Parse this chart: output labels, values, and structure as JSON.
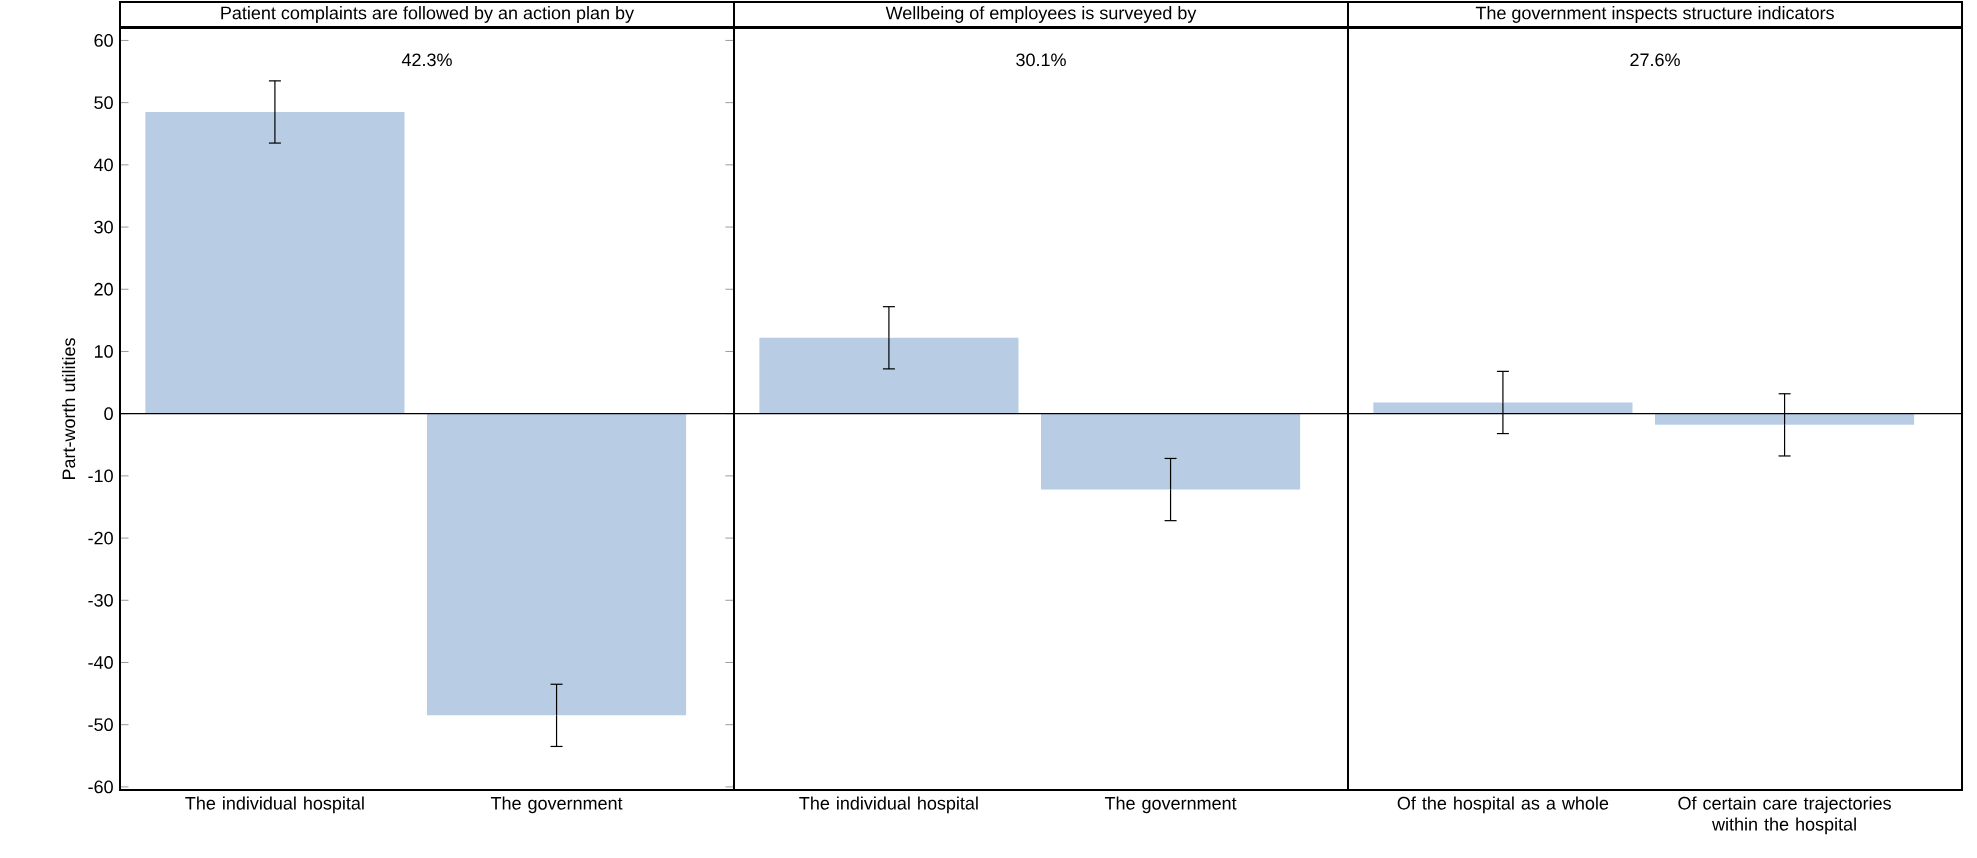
{
  "chart_data": [
    {
      "type": "bar",
      "title": "Patient complaints are followed by an action plan by",
      "categories": [
        "The individual hospital",
        "The government"
      ],
      "values": [
        48.5,
        -48.5
      ],
      "errors": [
        5,
        5
      ],
      "color": "#b8cce4",
      "ylim": [
        -60.5,
        62
      ],
      "yticks": [
        -60,
        -50,
        -40,
        -30,
        -20,
        -10,
        0,
        10,
        20,
        30,
        40,
        50,
        60
      ],
      "ylabel": "Part-worth utilities",
      "annotations": [
        "42.3%"
      ]
    },
    {
      "type": "bar",
      "title": "Wellbeing of employees is surveyed by",
      "categories": [
        "The individual hospital",
        "The government"
      ],
      "values": [
        12.2,
        -12.2
      ],
      "errors": [
        5,
        5
      ],
      "color": "#b8cce4",
      "ylim": [
        -60.5,
        62
      ],
      "yticks": [
        -60,
        -50,
        -40,
        -30,
        -20,
        -10,
        0,
        10,
        20,
        30,
        40,
        50,
        60
      ],
      "tick_labels": "x",
      "annotations": [
        "30.1%"
      ]
    },
    {
      "type": "bar",
      "title": "The government inspects structure indicators",
      "categories": [
        "Of the hospital as a whole",
        "Of certain care trajectories within the hospital"
      ],
      "values": [
        1.8,
        -1.8
      ],
      "errors": [
        5,
        5
      ],
      "color": "#b8cce4",
      "ylim": [
        -60.5,
        62
      ],
      "yticks": [
        -60,
        -50,
        -40,
        -30,
        -20,
        -10,
        0,
        10,
        20,
        30,
        40,
        50,
        60
      ],
      "tick_labels": "x",
      "annotations": [
        "27.6%"
      ]
    }
  ]
}
